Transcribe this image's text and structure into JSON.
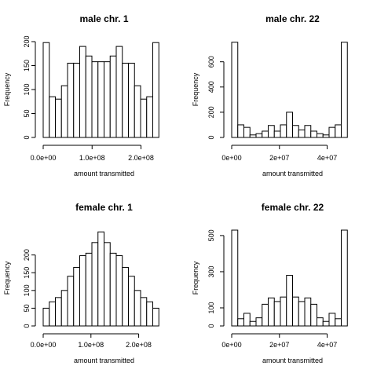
{
  "chart_data": [
    {
      "type": "bar",
      "title": "male chr.  1",
      "xlabel": "amount transmitted",
      "ylabel": "Frequency",
      "xlim": [
        0,
        249000000
      ],
      "ylim": [
        0,
        200
      ],
      "bin_edges": [
        0,
        12450000,
        24900000,
        37350000,
        49800000,
        62250000,
        74700000,
        87150000,
        99600000,
        112050000,
        124500000,
        136950000,
        149400000,
        161850000,
        174300000,
        186750000,
        199200000,
        211650000,
        224100000,
        236550000,
        249000000
      ],
      "values": [
        198,
        85,
        80,
        108,
        155,
        155,
        190,
        170,
        158,
        158,
        158,
        170,
        190,
        155,
        155,
        108,
        80,
        85,
        198,
        0
      ],
      "x_ticks": [
        0,
        100000000,
        200000000
      ],
      "x_tick_labels": [
        "0.0e+00",
        "1.0e+08",
        "2.0e+08"
      ],
      "y_ticks": [
        0,
        50,
        100,
        150,
        200
      ],
      "y_tick_labels": [
        "0",
        "50",
        "100",
        "150",
        "200"
      ]
    },
    {
      "type": "bar",
      "title": "male chr.  22",
      "xlabel": "amount transmitted",
      "ylabel": "Frequency",
      "xlim": [
        0,
        51000000
      ],
      "ylim": [
        0,
        760
      ],
      "bin_edges": [
        0,
        2550000,
        5100000,
        7650000,
        10200000,
        12750000,
        15300000,
        17850000,
        20400000,
        22950000,
        25500000,
        28050000,
        30600000,
        33150000,
        35700000,
        38250000,
        40800000,
        43350000,
        45900000,
        48450000,
        51000000
      ],
      "values": [
        755,
        100,
        80,
        20,
        30,
        50,
        95,
        50,
        100,
        200,
        95,
        60,
        95,
        50,
        30,
        20,
        80,
        100,
        755,
        0
      ],
      "x_ticks": [
        0,
        20000000,
        40000000
      ],
      "x_tick_labels": [
        "0e+00",
        "2e+07",
        "4e+07"
      ],
      "y_ticks": [
        0,
        200,
        400,
        600
      ],
      "y_tick_labels": [
        "0",
        "200",
        "400",
        "600"
      ]
    },
    {
      "type": "bar",
      "title": "female chr.  1",
      "xlabel": "amount transmitted",
      "ylabel": "Frequency",
      "xlim": [
        0,
        255000000
      ],
      "ylim": [
        0,
        270
      ],
      "bin_edges": [
        0,
        12750000,
        25500000,
        38250000,
        51000000,
        63750000,
        76500000,
        89250000,
        102000000,
        114750000,
        127500000,
        140250000,
        153000000,
        165750000,
        178500000,
        191250000,
        204000000,
        216750000,
        229500000,
        242250000,
        255000000
      ],
      "values": [
        50,
        68,
        80,
        100,
        140,
        165,
        198,
        205,
        235,
        265,
        235,
        205,
        198,
        165,
        140,
        100,
        80,
        68,
        50,
        0
      ],
      "x_ticks": [
        0,
        100000000,
        200000000
      ],
      "x_tick_labels": [
        "0.0e+00",
        "1.0e+08",
        "2.0e+08"
      ],
      "y_ticks": [
        0,
        50,
        100,
        150,
        200
      ],
      "y_tick_labels": [
        "0",
        "50",
        "100",
        "150",
        "200"
      ]
    },
    {
      "type": "bar",
      "title": "female chr.  22",
      "xlabel": "amount transmitted",
      "ylabel": "Frequency",
      "xlim": [
        0,
        51000000
      ],
      "ylim": [
        0,
        530
      ],
      "bin_edges": [
        0,
        2550000,
        5100000,
        7650000,
        10200000,
        12750000,
        15300000,
        17850000,
        20400000,
        22950000,
        25500000,
        28050000,
        30600000,
        33150000,
        35700000,
        38250000,
        40800000,
        43350000,
        45900000,
        48450000,
        51000000
      ],
      "values": [
        530,
        40,
        70,
        25,
        45,
        120,
        155,
        135,
        160,
        280,
        160,
        135,
        155,
        120,
        45,
        25,
        70,
        40,
        530,
        0
      ],
      "x_ticks": [
        0,
        20000000,
        40000000
      ],
      "x_tick_labels": [
        "0e+00",
        "2e+07",
        "4e+07"
      ],
      "y_ticks": [
        0,
        100,
        300,
        500
      ],
      "y_tick_labels": [
        "0",
        "100",
        "300",
        "500"
      ]
    }
  ]
}
